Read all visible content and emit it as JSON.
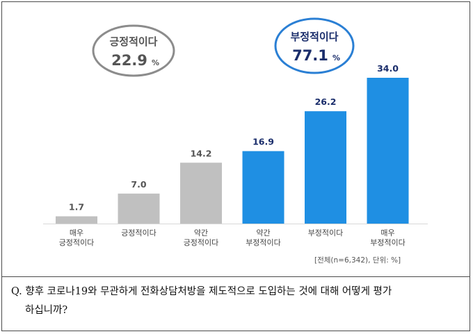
{
  "chart_data": {
    "type": "bar",
    "categories": [
      "매우\n긍정적이다",
      "긍정적이다",
      "약간\n긍정적이다",
      "약간\n부정적이다",
      "부정적이다",
      "매우\n부정적이다"
    ],
    "values": [
      1.7,
      7.0,
      14.2,
      16.9,
      26.2,
      34.0
    ],
    "value_labels": [
      "1.7",
      "7.0",
      "14.2",
      "16.9",
      "26.2",
      "34.0"
    ],
    "bar_colors": [
      "#c0c0c0",
      "#c0c0c0",
      "#c0c0c0",
      "#1f8fe3",
      "#1f8fe3",
      "#1f8fe3"
    ],
    "ylim": [
      0,
      34
    ],
    "grid": false,
    "summaries": [
      {
        "label": "긍정적이다",
        "value": "22.9",
        "unit": "%",
        "border_color": "#8c8c8c",
        "text_color": "#555555"
      },
      {
        "label": "부정적이다",
        "value": "77.1",
        "unit": "%",
        "border_color": "#2a7fd4",
        "text_color": "#1a2d6b"
      }
    ]
  },
  "colors": {
    "positive": "#c0c0c0",
    "negative": "#1f8fe3",
    "value_positive": "#555555",
    "value_negative": "#1a2d6b",
    "category_text": "#444444"
  },
  "note": "[전체(n=6,342), 단위: %]",
  "question": {
    "line1": "Q. 향후 코로나19와 무관하게 전화상담처방을 제도적으로 도입하는 것에 대해 어떻게 평가",
    "line2": "하십니까?"
  }
}
